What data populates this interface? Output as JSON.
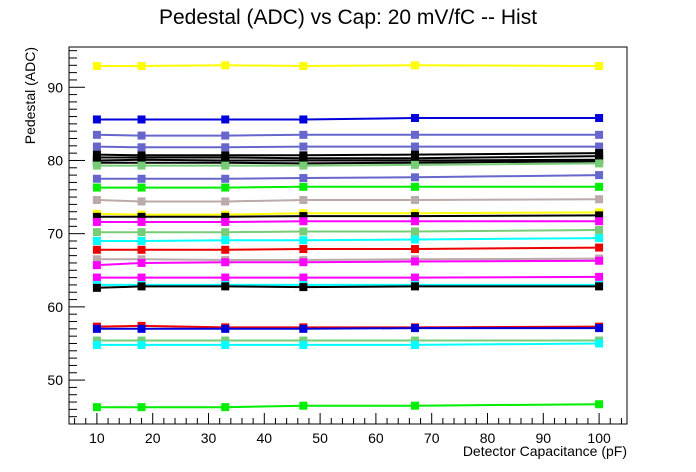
{
  "chart_data": {
    "type": "line",
    "title": "Pedestal (ADC) vs Cap: 20 mV/fC -- Hist",
    "xlabel": "Detector Capacitance (pF)",
    "ylabel": "Pedestal (ADC)",
    "xlim": [
      5,
      105
    ],
    "ylim": [
      44,
      95.5
    ],
    "xticks": [
      10,
      20,
      30,
      40,
      50,
      60,
      70,
      80,
      90,
      100
    ],
    "yticks": [
      50,
      60,
      70,
      80,
      90
    ],
    "grid": false,
    "legend": "none",
    "x": [
      10,
      18,
      33,
      47,
      67,
      100
    ],
    "series": [
      {
        "color": "#ffff00",
        "values": [
          92.9,
          92.9,
          93.0,
          92.9,
          93.0,
          92.9
        ]
      },
      {
        "color": "#0000dd",
        "values": [
          85.6,
          85.6,
          85.6,
          85.6,
          85.8,
          85.8
        ]
      },
      {
        "color": "#6666cc",
        "values": [
          83.5,
          83.4,
          83.4,
          83.5,
          83.5,
          83.5
        ]
      },
      {
        "color": "#6666cc",
        "values": [
          81.9,
          81.8,
          81.8,
          81.9,
          81.9,
          81.9
        ]
      },
      {
        "color": "#000000",
        "values": [
          80.8,
          80.7,
          80.7,
          80.7,
          80.8,
          81.0
        ]
      },
      {
        "color": "#000000",
        "values": [
          80.4,
          80.4,
          80.4,
          80.3,
          80.3,
          80.6
        ]
      },
      {
        "color": "#000000",
        "values": [
          80.0,
          80.1,
          80.0,
          80.0,
          80.0,
          80.1
        ]
      },
      {
        "color": "#000000",
        "values": [
          79.7,
          79.7,
          79.7,
          79.6,
          79.7,
          79.9
        ]
      },
      {
        "color": "#77cc77",
        "values": [
          79.3,
          79.3,
          79.3,
          79.3,
          79.4,
          79.6
        ]
      },
      {
        "color": "#6666cc",
        "values": [
          77.5,
          77.5,
          77.5,
          77.6,
          77.7,
          78.0
        ]
      },
      {
        "color": "#00ee00",
        "values": [
          76.3,
          76.3,
          76.3,
          76.4,
          76.4,
          76.4
        ]
      },
      {
        "color": "#bbaaaa",
        "values": [
          74.6,
          74.4,
          74.4,
          74.6,
          74.6,
          74.7
        ]
      },
      {
        "color": "#ffff00",
        "values": [
          72.7,
          72.6,
          72.6,
          72.8,
          72.8,
          72.9
        ]
      },
      {
        "color": "#000000",
        "values": [
          72.3,
          72.3,
          72.3,
          72.4,
          72.4,
          72.5
        ]
      },
      {
        "color": "#ff00ff",
        "values": [
          71.6,
          71.6,
          71.6,
          71.7,
          71.7,
          71.7
        ]
      },
      {
        "color": "#77cc77",
        "values": [
          70.2,
          70.2,
          70.2,
          70.3,
          70.3,
          70.5
        ]
      },
      {
        "color": "#00ffff",
        "values": [
          69.0,
          69.0,
          69.1,
          69.1,
          69.2,
          69.4
        ]
      },
      {
        "color": "#ee0000",
        "values": [
          67.8,
          67.8,
          67.8,
          67.9,
          67.9,
          68.1
        ]
      },
      {
        "color": "#bbaaaa",
        "values": [
          66.5,
          66.5,
          66.4,
          66.4,
          66.5,
          66.6
        ]
      },
      {
        "color": "#ff00ff",
        "values": [
          65.7,
          66.0,
          66.1,
          66.1,
          66.2,
          66.3
        ]
      },
      {
        "color": "#ff00ff",
        "values": [
          64.0,
          64.0,
          64.0,
          64.0,
          64.0,
          64.1
        ]
      },
      {
        "color": "#00ffff",
        "values": [
          63.0,
          63.0,
          63.0,
          63.0,
          63.0,
          63.0
        ]
      },
      {
        "color": "#000000",
        "values": [
          62.6,
          62.8,
          62.8,
          62.7,
          62.8,
          62.8
        ]
      },
      {
        "color": "#ee0000",
        "values": [
          57.3,
          57.4,
          57.2,
          57.2,
          57.2,
          57.3
        ]
      },
      {
        "color": "#0000dd",
        "values": [
          57.0,
          57.0,
          57.0,
          57.0,
          57.1,
          57.1
        ]
      },
      {
        "color": "#77cc77",
        "values": [
          55.4,
          55.4,
          55.4,
          55.4,
          55.4,
          55.4
        ]
      },
      {
        "color": "#00ffff",
        "values": [
          54.8,
          54.8,
          54.8,
          54.8,
          54.8,
          55.0
        ]
      },
      {
        "color": "#00ee00",
        "values": [
          46.3,
          46.3,
          46.3,
          46.5,
          46.5,
          46.7
        ]
      }
    ]
  }
}
